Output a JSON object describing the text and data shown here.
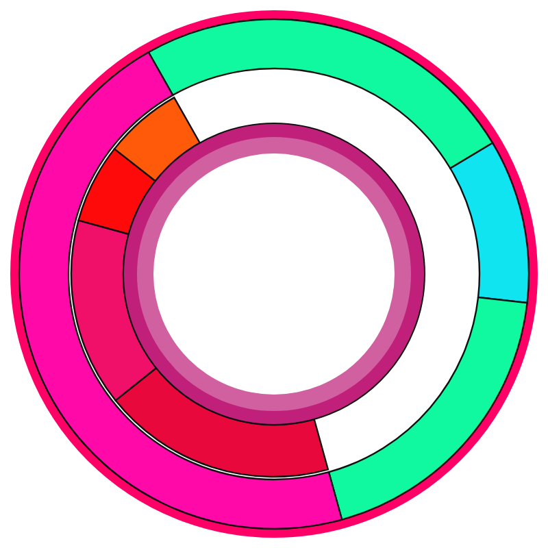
{
  "chart_data": {
    "type": "donut",
    "series": [
      {
        "values": [
          24.6,
          10.4,
          18.9,
          46.1
        ],
        "colors": [
          "#10f9a0",
          "#10e4f0",
          "#10f9a0",
          "#ff0aa8"
        ]
      },
      {
        "values": [
          40.3,
          32.5,
          13.7,
          13.5
        ],
        "colors": [
          "#e8083c",
          "#f0106a",
          "#ff0a0a",
          "#ff5a0a"
        ]
      }
    ]
  }
}
